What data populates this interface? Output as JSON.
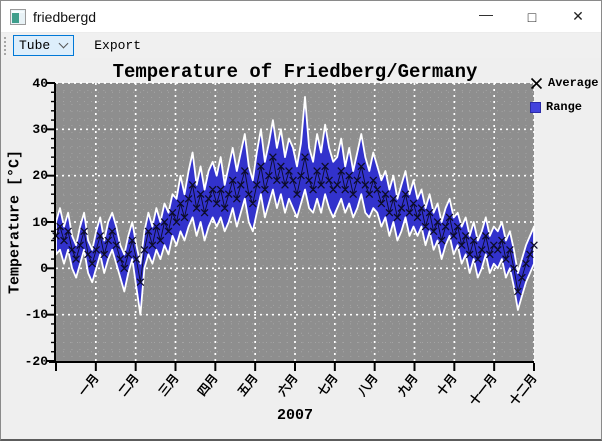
{
  "window": {
    "title": "friedbergd",
    "controls": {
      "minimize": "—",
      "maximize": "□",
      "close": "✕"
    }
  },
  "toolbar": {
    "combo_value": "Tube",
    "export_label": "Export"
  },
  "chart_data": {
    "type": "area",
    "title": "Temperature of Friedberg/Germany",
    "xlabel": "2007",
    "ylabel": "Temperature [°C]",
    "ylim": [
      -20,
      40
    ],
    "yticks": [
      40,
      30,
      20,
      10,
      0,
      -10,
      -20
    ],
    "grid": "dotted, major white / minor light-gray on gray plot background",
    "legend_position": "outside top-right",
    "legend": [
      {
        "label": "Average",
        "marker": "x-cross"
      },
      {
        "label": "Range",
        "marker": "filled-square"
      }
    ],
    "categories": [
      "一月",
      "二月",
      "三月",
      "四月",
      "五月",
      "六月",
      "七月",
      "八月",
      "九月",
      "十月",
      "十一月",
      "十二月"
    ],
    "points_per_month": 10,
    "colors": {
      "plot_bg": "#8e8e8e",
      "range_fill": "#3232cc",
      "range_outline": "#ffffff",
      "average": "#0c0c28",
      "grid_major": "#ffffff",
      "grid_minor": "#a5a5a5",
      "axis": "#000000"
    },
    "series": [
      {
        "name": "Average",
        "values": [
          7,
          9,
          6,
          8,
          4,
          2,
          5,
          8,
          3,
          1,
          4,
          7,
          3,
          6,
          8,
          5,
          2,
          0,
          3,
          6,
          2,
          -3,
          4,
          8,
          5,
          9,
          6,
          10,
          8,
          12,
          10,
          14,
          11,
          15,
          18,
          13,
          16,
          12,
          15,
          17,
          14,
          17,
          13,
          16,
          19,
          15,
          18,
          21,
          16,
          14,
          18,
          22,
          17,
          20,
          24,
          19,
          22,
          18,
          21,
          19,
          16,
          20,
          24,
          19,
          17,
          21,
          18,
          22,
          19,
          17,
          18,
          21,
          17,
          20,
          16,
          19,
          22,
          18,
          16,
          19,
          17,
          14,
          16,
          12,
          15,
          11,
          13,
          16,
          12,
          14,
          11,
          13,
          9,
          12,
          8,
          10,
          6,
          9,
          11,
          7,
          9,
          5,
          7,
          3,
          6,
          2,
          4,
          7,
          3,
          5,
          4,
          6,
          2,
          4,
          0,
          -5,
          -2,
          1,
          3,
          5
        ]
      },
      {
        "name": "Range min",
        "values": [
          3,
          4,
          1,
          4,
          0,
          -2,
          1,
          4,
          -1,
          -3,
          0,
          3,
          -1,
          2,
          4,
          1,
          -2,
          -5,
          -1,
          2,
          -4,
          -10,
          0,
          3,
          1,
          4,
          2,
          5,
          3,
          7,
          5,
          8,
          6,
          9,
          11,
          7,
          10,
          6,
          9,
          11,
          9,
          11,
          8,
          10,
          13,
          9,
          12,
          15,
          10,
          8,
          12,
          16,
          11,
          14,
          17,
          13,
          16,
          12,
          15,
          13,
          11,
          14,
          17,
          13,
          12,
          15,
          12,
          16,
          13,
          11,
          13,
          15,
          12,
          14,
          11,
          13,
          16,
          12,
          11,
          13,
          12,
          9,
          11,
          7,
          10,
          6,
          8,
          11,
          7,
          9,
          7,
          9,
          5,
          8,
          4,
          6,
          2,
          5,
          7,
          3,
          5,
          1,
          3,
          -1,
          2,
          -2,
          0,
          3,
          -1,
          1,
          0,
          2,
          -2,
          0,
          -4,
          -9,
          -6,
          -3,
          -1,
          1
        ]
      },
      {
        "name": "Range max",
        "values": [
          10,
          13,
          9,
          12,
          7,
          5,
          9,
          12,
          6,
          4,
          8,
          11,
          6,
          10,
          12,
          9,
          5,
          3,
          7,
          10,
          5,
          1,
          8,
          12,
          9,
          13,
          10,
          14,
          12,
          16,
          15,
          20,
          16,
          21,
          25,
          18,
          22,
          17,
          21,
          23,
          20,
          24,
          18,
          22,
          26,
          21,
          25,
          29,
          22,
          19,
          25,
          30,
          23,
          27,
          32,
          26,
          30,
          24,
          28,
          26,
          22,
          27,
          37,
          26,
          23,
          29,
          25,
          31,
          26,
          23,
          24,
          28,
          22,
          26,
          21,
          25,
          29,
          24,
          21,
          25,
          22,
          19,
          21,
          17,
          20,
          15,
          18,
          21,
          16,
          19,
          15,
          17,
          13,
          16,
          12,
          14,
          10,
          13,
          15,
          11,
          12,
          9,
          11,
          7,
          10,
          6,
          8,
          11,
          7,
          9,
          8,
          10,
          6,
          8,
          4,
          -1,
          2,
          5,
          7,
          9
        ]
      }
    ]
  }
}
